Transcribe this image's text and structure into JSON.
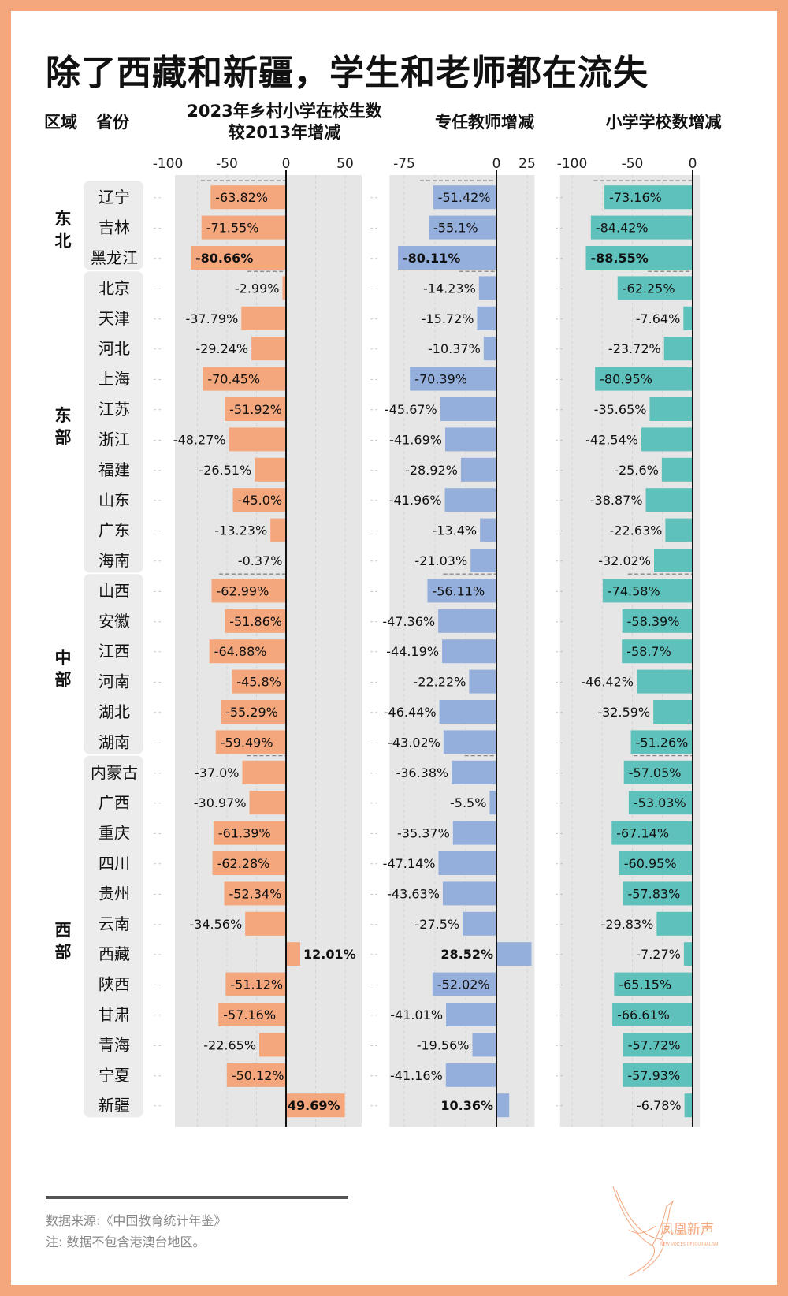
{
  "title": "除了西藏和新疆，学生和老师都在流失",
  "headers": {
    "region": "区域",
    "province": "省份",
    "students_line1": "2023年乡村小学在校生数",
    "students_line2": "较2013年增减",
    "teachers": "专任教师增减",
    "schools": "小学学校数增减"
  },
  "colors": {
    "frame": "#f4a67c",
    "students": "#f4a67c",
    "teachers": "#95afdc",
    "schools": "#5ec1bb",
    "panel_bg": "#e6e6e6",
    "province_bg": "#ececec"
  },
  "chart_data": {
    "type": "bar",
    "orientation": "horizontal",
    "title": "除了西藏和新疆，学生和老师都在流失",
    "unit": "%",
    "grid": true,
    "categories": [
      "辽宁",
      "吉林",
      "黑龙江",
      "北京",
      "天津",
      "河北",
      "上海",
      "江苏",
      "浙江",
      "福建",
      "山东",
      "广东",
      "海南",
      "山西",
      "安徽",
      "江西",
      "河南",
      "湖北",
      "湖南",
      "内蒙古",
      "广西",
      "重庆",
      "四川",
      "贵州",
      "云南",
      "西藏",
      "陕西",
      "甘肃",
      "青海",
      "宁夏",
      "新疆"
    ],
    "regions": [
      {
        "name": "东北",
        "count": 3
      },
      {
        "name": "东部",
        "count": 10
      },
      {
        "name": "中部",
        "count": 6
      },
      {
        "name": "西部",
        "count": 12
      }
    ],
    "series": [
      {
        "name": "2023年乡村小学在校生数较2013年增减",
        "key": "students",
        "xlim": [
          -100,
          50
        ],
        "ticks": [
          "-100",
          "-50",
          "0",
          "50"
        ],
        "tick_values": [
          -100,
          -50,
          0,
          50
        ],
        "values": [
          -63.82,
          -71.55,
          -80.66,
          -2.99,
          -37.79,
          -29.24,
          -70.45,
          -51.92,
          -48.27,
          -26.51,
          -45.0,
          -13.23,
          -0.37,
          -62.99,
          -51.86,
          -64.88,
          -45.8,
          -55.29,
          -59.49,
          -37.0,
          -30.97,
          -61.39,
          -62.28,
          -52.34,
          -34.56,
          12.01,
          -51.12,
          -57.16,
          -22.65,
          -50.12,
          49.69
        ],
        "labels": [
          "-63.82%",
          "-71.55%",
          "-80.66%",
          "-2.99%",
          "-37.79%",
          "-29.24%",
          "-70.45%",
          "-51.92%",
          "-48.27%",
          "-26.51%",
          "-45.0%",
          "-13.23%",
          "-0.37%",
          "-62.99%",
          "-51.86%",
          "-64.88%",
          "-45.8%",
          "-55.29%",
          "-59.49%",
          "-37.0%",
          "-30.97%",
          "-61.39%",
          "-62.28%",
          "-52.34%",
          "-34.56%",
          "12.01%",
          "-51.12%",
          "-57.16%",
          "-22.65%",
          "-50.12%",
          "49.69%"
        ],
        "bold_labels": [
          "黑龙江",
          "西藏",
          "新疆"
        ]
      },
      {
        "name": "专任教师增减",
        "key": "teachers",
        "xlim": [
          -75,
          25
        ],
        "ticks": [
          "-75",
          "0",
          "25"
        ],
        "tick_values": [
          -75,
          0,
          25
        ],
        "values": [
          -51.42,
          -55.1,
          -80.11,
          -14.23,
          -15.72,
          -10.37,
          -70.39,
          -45.67,
          -41.69,
          -28.92,
          -41.96,
          -13.4,
          -21.03,
          -56.11,
          -47.36,
          -44.19,
          -22.22,
          -46.44,
          -43.02,
          -36.38,
          -5.5,
          -35.37,
          -47.14,
          -43.63,
          -27.5,
          28.52,
          -52.02,
          -41.01,
          -19.56,
          -41.16,
          10.36
        ],
        "labels": [
          "-51.42%",
          "-55.1%",
          "-80.11%",
          "-14.23%",
          "-15.72%",
          "-10.37%",
          "-70.39%",
          "-45.67%",
          "-41.69%",
          "-28.92%",
          "-41.96%",
          "-13.4%",
          "-21.03%",
          "-56.11%",
          "-47.36%",
          "-44.19%",
          "-22.22%",
          "-46.44%",
          "-43.02%",
          "-36.38%",
          "-5.5%",
          "-35.37%",
          "-47.14%",
          "-43.63%",
          "-27.5%",
          "28.52%",
          "-52.02%",
          "-41.01%",
          "-19.56%",
          "-41.16%",
          "10.36%"
        ],
        "bold_labels": [
          "黑龙江",
          "西藏",
          "新疆"
        ]
      },
      {
        "name": "小学学校数增减",
        "key": "schools",
        "xlim": [
          -100,
          0
        ],
        "ticks": [
          "-100",
          "-50",
          "0"
        ],
        "tick_values": [
          -100,
          -50,
          0
        ],
        "values": [
          -73.16,
          -84.42,
          -88.55,
          -62.25,
          -7.64,
          -23.72,
          -80.95,
          -35.65,
          -42.54,
          -25.6,
          -38.87,
          -22.63,
          -32.02,
          -74.58,
          -58.39,
          -58.7,
          -46.42,
          -32.59,
          -51.26,
          -57.05,
          -53.03,
          -67.14,
          -60.95,
          -57.83,
          -29.83,
          -7.27,
          -65.15,
          -66.61,
          -57.72,
          -57.93,
          -6.78
        ],
        "labels": [
          "-73.16%",
          "-84.42%",
          "-88.55%",
          "-62.25%",
          "-7.64%",
          "-23.72%",
          "-80.95%",
          "-35.65%",
          "-42.54%",
          "-25.6%",
          "-38.87%",
          "-22.63%",
          "-32.02%",
          "-74.58%",
          "-58.39%",
          "-58.7%",
          "-46.42%",
          "-32.59%",
          "-51.26%",
          "-57.05%",
          "-53.03%",
          "-67.14%",
          "-60.95%",
          "-57.83%",
          "-29.83%",
          "-7.27%",
          "-65.15%",
          "-66.61%",
          "-57.72%",
          "-57.93%",
          "-6.78%"
        ],
        "bold_labels": [
          "黑龙江"
        ]
      }
    ]
  },
  "footer": {
    "source": "数据来源:《中国教育统计年鉴》",
    "note": "注: 数据不包含港澳台地区。"
  },
  "logo": {
    "name_cn": "凤凰新声",
    "name_en": "NEW VOICES OF JOURNALISM"
  }
}
